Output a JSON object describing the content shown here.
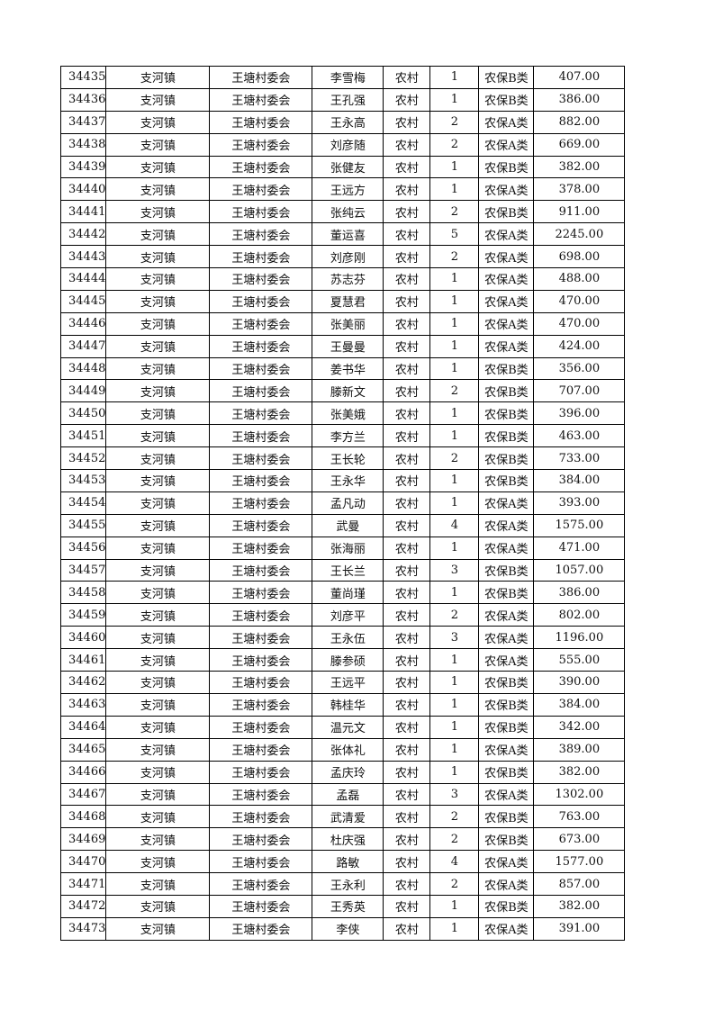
{
  "table": {
    "rows": [
      [
        "34435",
        "支河镇",
        "王塘村委会",
        "李雪梅",
        "农村",
        "1",
        "农保B类",
        "407.00"
      ],
      [
        "34436",
        "支河镇",
        "王塘村委会",
        "王孔强",
        "农村",
        "1",
        "农保B类",
        "386.00"
      ],
      [
        "34437",
        "支河镇",
        "王塘村委会",
        "王永高",
        "农村",
        "2",
        "农保A类",
        "882.00"
      ],
      [
        "34438",
        "支河镇",
        "王塘村委会",
        "刘彦随",
        "农村",
        "2",
        "农保A类",
        "669.00"
      ],
      [
        "34439",
        "支河镇",
        "王塘村委会",
        "张健友",
        "农村",
        "1",
        "农保B类",
        "382.00"
      ],
      [
        "34440",
        "支河镇",
        "王塘村委会",
        "王远方",
        "农村",
        "1",
        "农保A类",
        "378.00"
      ],
      [
        "34441",
        "支河镇",
        "王塘村委会",
        "张纯云",
        "农村",
        "2",
        "农保B类",
        "911.00"
      ],
      [
        "34442",
        "支河镇",
        "王塘村委会",
        "董运喜",
        "农村",
        "5",
        "农保A类",
        "2245.00"
      ],
      [
        "34443",
        "支河镇",
        "王塘村委会",
        "刘彦刚",
        "农村",
        "2",
        "农保A类",
        "698.00"
      ],
      [
        "34444",
        "支河镇",
        "王塘村委会",
        "苏志芬",
        "农村",
        "1",
        "农保A类",
        "488.00"
      ],
      [
        "34445",
        "支河镇",
        "王塘村委会",
        "夏慧君",
        "农村",
        "1",
        "农保A类",
        "470.00"
      ],
      [
        "34446",
        "支河镇",
        "王塘村委会",
        "张美丽",
        "农村",
        "1",
        "农保A类",
        "470.00"
      ],
      [
        "34447",
        "支河镇",
        "王塘村委会",
        "王曼曼",
        "农村",
        "1",
        "农保A类",
        "424.00"
      ],
      [
        "34448",
        "支河镇",
        "王塘村委会",
        "姜书华",
        "农村",
        "1",
        "农保B类",
        "356.00"
      ],
      [
        "34449",
        "支河镇",
        "王塘村委会",
        "滕新文",
        "农村",
        "2",
        "农保B类",
        "707.00"
      ],
      [
        "34450",
        "支河镇",
        "王塘村委会",
        "张美娥",
        "农村",
        "1",
        "农保B类",
        "396.00"
      ],
      [
        "34451",
        "支河镇",
        "王塘村委会",
        "李方兰",
        "农村",
        "1",
        "农保B类",
        "463.00"
      ],
      [
        "34452",
        "支河镇",
        "王塘村委会",
        "王长轮",
        "农村",
        "2",
        "农保B类",
        "733.00"
      ],
      [
        "34453",
        "支河镇",
        "王塘村委会",
        "王永华",
        "农村",
        "1",
        "农保B类",
        "384.00"
      ],
      [
        "34454",
        "支河镇",
        "王塘村委会",
        "孟凡动",
        "农村",
        "1",
        "农保A类",
        "393.00"
      ],
      [
        "34455",
        "支河镇",
        "王塘村委会",
        "武曼",
        "农村",
        "4",
        "农保A类",
        "1575.00"
      ],
      [
        "34456",
        "支河镇",
        "王塘村委会",
        "张海丽",
        "农村",
        "1",
        "农保A类",
        "471.00"
      ],
      [
        "34457",
        "支河镇",
        "王塘村委会",
        "王长兰",
        "农村",
        "3",
        "农保B类",
        "1057.00"
      ],
      [
        "34458",
        "支河镇",
        "王塘村委会",
        "董尚瑾",
        "农村",
        "1",
        "农保B类",
        "386.00"
      ],
      [
        "34459",
        "支河镇",
        "王塘村委会",
        "刘彦平",
        "农村",
        "2",
        "农保A类",
        "802.00"
      ],
      [
        "34460",
        "支河镇",
        "王塘村委会",
        "王永伍",
        "农村",
        "3",
        "农保A类",
        "1196.00"
      ],
      [
        "34461",
        "支河镇",
        "王塘村委会",
        "滕参硕",
        "农村",
        "1",
        "农保A类",
        "555.00"
      ],
      [
        "34462",
        "支河镇",
        "王塘村委会",
        "王远平",
        "农村",
        "1",
        "农保B类",
        "390.00"
      ],
      [
        "34463",
        "支河镇",
        "王塘村委会",
        "韩桂华",
        "农村",
        "1",
        "农保B类",
        "384.00"
      ],
      [
        "34464",
        "支河镇",
        "王塘村委会",
        "温元文",
        "农村",
        "1",
        "农保B类",
        "342.00"
      ],
      [
        "34465",
        "支河镇",
        "王塘村委会",
        "张体礼",
        "农村",
        "1",
        "农保A类",
        "389.00"
      ],
      [
        "34466",
        "支河镇",
        "王塘村委会",
        "孟庆玲",
        "农村",
        "1",
        "农保B类",
        "382.00"
      ],
      [
        "34467",
        "支河镇",
        "王塘村委会",
        "孟磊",
        "农村",
        "3",
        "农保A类",
        "1302.00"
      ],
      [
        "34468",
        "支河镇",
        "王塘村委会",
        "武清爱",
        "农村",
        "2",
        "农保B类",
        "763.00"
      ],
      [
        "34469",
        "支河镇",
        "王塘村委会",
        "杜庆强",
        "农村",
        "2",
        "农保B类",
        "673.00"
      ],
      [
        "34470",
        "支河镇",
        "王塘村委会",
        "路敏",
        "农村",
        "4",
        "农保A类",
        "1577.00"
      ],
      [
        "34471",
        "支河镇",
        "王塘村委会",
        "王永利",
        "农村",
        "2",
        "农保A类",
        "857.00"
      ],
      [
        "34472",
        "支河镇",
        "王塘村委会",
        "王秀英",
        "农村",
        "1",
        "农保B类",
        "382.00"
      ],
      [
        "34473",
        "支河镇",
        "王塘村委会",
        "李侠",
        "农村",
        "1",
        "农保A类",
        "391.00"
      ]
    ]
  }
}
